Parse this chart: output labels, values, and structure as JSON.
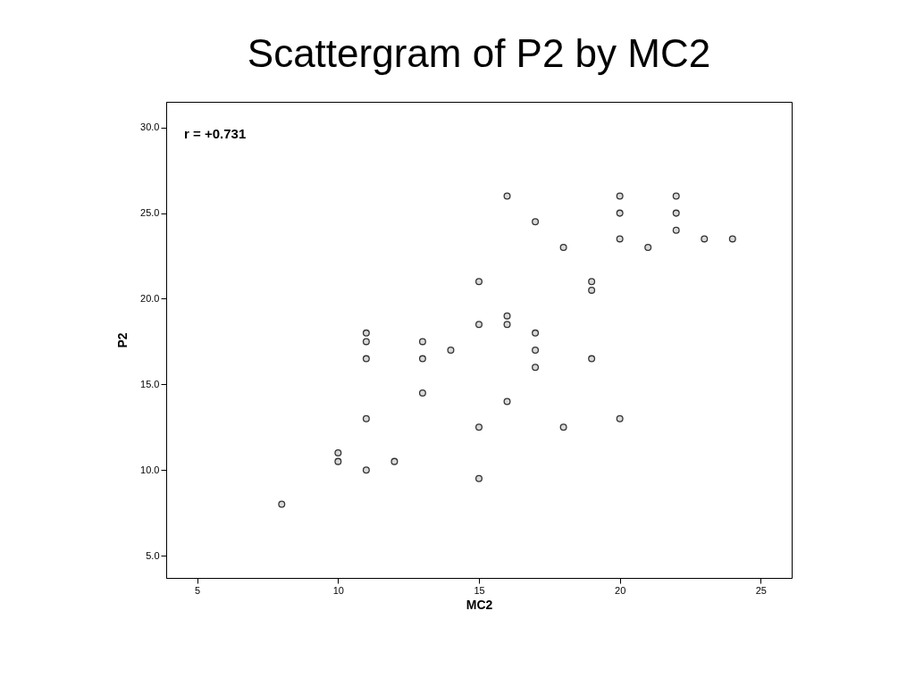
{
  "chart_data": {
    "type": "scatter",
    "title": "Scattergram of P2 by MC2",
    "xlabel": "MC2",
    "ylabel": "P2",
    "x": [
      8,
      10,
      10,
      11,
      11,
      11,
      11,
      11,
      12,
      13,
      13,
      13,
      14,
      15,
      15,
      15,
      15,
      16,
      16,
      16,
      16,
      17,
      17,
      17,
      17,
      18,
      18,
      19,
      19,
      19,
      20,
      20,
      20,
      20,
      21,
      22,
      22,
      22,
      23,
      24
    ],
    "series": [
      {
        "color": "#333333",
        "values": [
          8,
          11,
          10.5,
          18,
          17.5,
          16.5,
          13,
          10,
          10.5,
          17.5,
          16.5,
          14.5,
          17,
          21,
          18.5,
          12.5,
          9.5,
          26,
          19,
          18.5,
          14,
          24.5,
          18,
          17,
          16,
          23,
          12.5,
          21,
          20.5,
          16.5,
          26,
          25,
          23.5,
          13,
          23,
          26,
          25,
          24,
          23.5,
          23.5
        ]
      }
    ],
    "xlim": [
      3.9,
      26.1
    ],
    "ylim": [
      3.7,
      31.5
    ],
    "xticks": [
      5,
      10,
      15,
      20,
      25
    ],
    "yticks": [
      {
        "value": 5,
        "label": "5.0"
      },
      {
        "value": 10,
        "label": "10.0"
      },
      {
        "value": 15,
        "label": "15.0"
      },
      {
        "value": 20,
        "label": "20.0"
      },
      {
        "value": 25,
        "label": "25.0"
      },
      {
        "value": 30,
        "label": "30.0"
      }
    ],
    "annotations": [
      "r = +0.731"
    ],
    "marker": "circle",
    "grid": false,
    "legend": false
  }
}
